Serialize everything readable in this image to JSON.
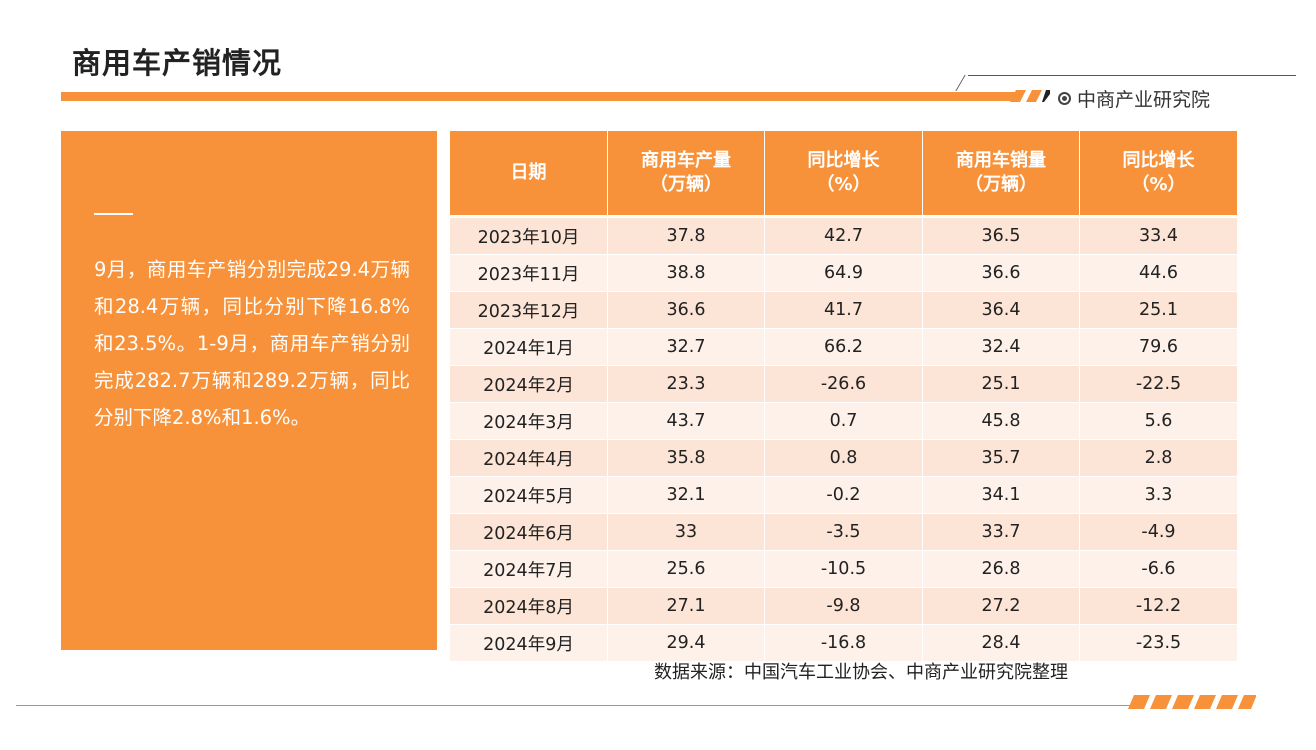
{
  "page": {
    "title": "商用车产销情况",
    "brand": "中商产业研究院",
    "source": "数据来源：中国汽车工业协会、中商产业研究院整理"
  },
  "summary": {
    "text": "9月，商用车产销分别完成29.4万辆和28.4万辆，同比分别下降16.8%和23.5%。1-9月，商用车产销分别完成282.7万辆和289.2万辆，同比分别下降2.8%和1.6%。"
  },
  "table": {
    "headers": [
      {
        "line1": "日期",
        "line2": ""
      },
      {
        "line1": "商用车产量",
        "line2": "（万辆）"
      },
      {
        "line1": "同比增长",
        "line2": "（%）"
      },
      {
        "line1": "商用车销量",
        "line2": "（万辆）"
      },
      {
        "line1": "同比增长",
        "line2": "（%）"
      }
    ],
    "rows": [
      [
        "2023年10月",
        "37.8",
        "42.7",
        "36.5",
        "33.4"
      ],
      [
        "2023年11月",
        "38.8",
        "64.9",
        "36.6",
        "44.6"
      ],
      [
        "2023年12月",
        "36.6",
        "41.7",
        "36.4",
        "25.1"
      ],
      [
        "2024年1月",
        "32.7",
        "66.2",
        "32.4",
        "79.6"
      ],
      [
        "2024年2月",
        "23.3",
        "-26.6",
        "25.1",
        "-22.5"
      ],
      [
        "2024年3月",
        "43.7",
        "0.7",
        "45.8",
        "5.6"
      ],
      [
        "2024年4月",
        "35.8",
        "0.8",
        "35.7",
        "2.8"
      ],
      [
        "2024年5月",
        "32.1",
        "-0.2",
        "34.1",
        "3.3"
      ],
      [
        "2024年6月",
        "33",
        "-3.5",
        "33.7",
        "-4.9"
      ],
      [
        "2024年7月",
        "25.6",
        "-10.5",
        "26.8",
        "-6.6"
      ],
      [
        "2024年8月",
        "27.1",
        "-9.8",
        "27.2",
        "-12.2"
      ],
      [
        "2024年9月",
        "29.4",
        "-16.8",
        "28.4",
        "-23.5"
      ]
    ]
  },
  "colors": {
    "accent": "#f7923a",
    "row_odd": "#fce4d6",
    "row_even": "#fdf1ea"
  },
  "icons": {
    "brand": "circle-dot-icon"
  }
}
